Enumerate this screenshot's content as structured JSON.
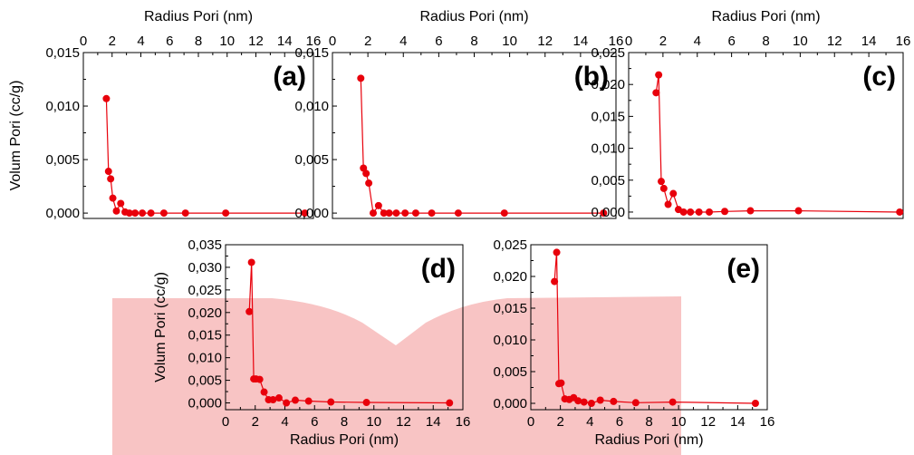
{
  "colors": {
    "series": "#e8000b",
    "background_shape": "#f8c4c4"
  },
  "chart_data": [
    {
      "type": "line",
      "panel_label": "(a)",
      "xlabel": "Radius Pori (nm)",
      "ylabel": "Volum Pori (cc/g)",
      "xlim": [
        0,
        16
      ],
      "ylim": [
        -0.0005,
        0.015
      ],
      "xticks": [
        "0",
        "2",
        "4",
        "6",
        "8",
        "10",
        "12",
        "14",
        "16"
      ],
      "yticks": [
        "0,000",
        "0,005",
        "0,010",
        "0,015"
      ],
      "points": {
        "x": [
          1.6,
          1.75,
          1.9,
          2.05,
          2.3,
          2.6,
          2.9,
          3.2,
          3.6,
          4.1,
          4.7,
          5.6,
          7.1,
          9.9,
          15.4
        ],
        "y": [
          0.0107,
          0.0039,
          0.0032,
          0.0014,
          0.0002,
          0.0009,
          0.0001,
          0.0,
          0.0,
          0.0,
          0.0,
          0.0,
          0.0,
          0.0,
          0.0
        ]
      }
    },
    {
      "type": "line",
      "panel_label": "(b)",
      "xlabel": "Radius Pori (nm)",
      "ylabel": "",
      "xlim": [
        0,
        16
      ],
      "ylim": [
        -0.0005,
        0.015
      ],
      "xticks": [
        "0",
        "2",
        "4",
        "6",
        "8",
        "10",
        "12",
        "14",
        "16"
      ],
      "yticks": [
        "0,000",
        "0,005",
        "0,010",
        "0,015"
      ],
      "points": {
        "x": [
          1.6,
          1.75,
          1.9,
          2.05,
          2.3,
          2.6,
          2.9,
          3.2,
          3.6,
          4.1,
          4.7,
          5.6,
          7.1,
          9.7,
          15.3
        ],
        "y": [
          0.0126,
          0.0042,
          0.0037,
          0.0028,
          0.0,
          0.0007,
          0.0,
          0.0,
          0.0,
          0.0,
          0.0,
          0.0,
          0.0,
          0.0,
          0.0
        ]
      }
    },
    {
      "type": "line",
      "panel_label": "(c)",
      "xlabel": "Radius Pori (nm)",
      "ylabel": "",
      "xlim": [
        0,
        16
      ],
      "ylim": [
        -0.001,
        0.025
      ],
      "xticks": [
        "0",
        "2",
        "4",
        "6",
        "8",
        "10",
        "12",
        "14",
        "16"
      ],
      "yticks": [
        "0,000",
        "0,005",
        "0,010",
        "0,015",
        "0,020",
        "0,025"
      ],
      "points": {
        "x": [
          1.6,
          1.75,
          1.9,
          2.05,
          2.3,
          2.6,
          2.9,
          3.2,
          3.6,
          4.1,
          4.7,
          5.6,
          7.1,
          9.9,
          15.8
        ],
        "y": [
          0.0187,
          0.0215,
          0.0048,
          0.0037,
          0.0012,
          0.0029,
          0.0004,
          0.0,
          0.0,
          0.0,
          0.0,
          0.0001,
          0.0002,
          0.0002,
          0.0
        ]
      }
    },
    {
      "type": "line",
      "panel_label": "(d)",
      "xlabel": "Radius Pori (nm)",
      "ylabel": "Volum Pori (cc/g)",
      "xlim": [
        0,
        16
      ],
      "ylim": [
        -0.0015,
        0.035
      ],
      "xticks": [
        "0",
        "2",
        "4",
        "6",
        "8",
        "10",
        "12",
        "14",
        "16"
      ],
      "yticks": [
        "0,000",
        "0,005",
        "0,010",
        "0,015",
        "0,020",
        "0,025",
        "0,030",
        "0,035"
      ],
      "points": {
        "x": [
          1.6,
          1.75,
          1.9,
          2.05,
          2.3,
          2.6,
          2.9,
          3.2,
          3.6,
          4.1,
          4.7,
          5.6,
          7.1,
          9.5,
          15.1
        ],
        "y": [
          0.0202,
          0.0311,
          0.0053,
          0.0053,
          0.0052,
          0.0024,
          0.0007,
          0.0007,
          0.0011,
          0.0,
          0.0006,
          0.0004,
          0.0002,
          0.0001,
          0.0
        ]
      }
    },
    {
      "type": "line",
      "panel_label": "(e)",
      "xlabel": "Radius Pori (nm)",
      "ylabel": "",
      "xlim": [
        0,
        16
      ],
      "ylim": [
        -0.001,
        0.025
      ],
      "xticks": [
        "0",
        "2",
        "4",
        "6",
        "8",
        "10",
        "12",
        "14",
        "16"
      ],
      "yticks": [
        "0,000",
        "0,005",
        "0,010",
        "0,015",
        "0,020",
        "0,025"
      ],
      "points": {
        "x": [
          1.6,
          1.75,
          1.9,
          2.05,
          2.3,
          2.6,
          2.9,
          3.2,
          3.6,
          4.1,
          4.7,
          5.6,
          7.1,
          9.6,
          15.2
        ],
        "y": [
          0.0192,
          0.0238,
          0.0031,
          0.0032,
          0.0007,
          0.0006,
          0.0009,
          0.0004,
          0.0002,
          0.0,
          0.0005,
          0.0003,
          0.0001,
          0.0002,
          0.0
        ]
      }
    }
  ]
}
